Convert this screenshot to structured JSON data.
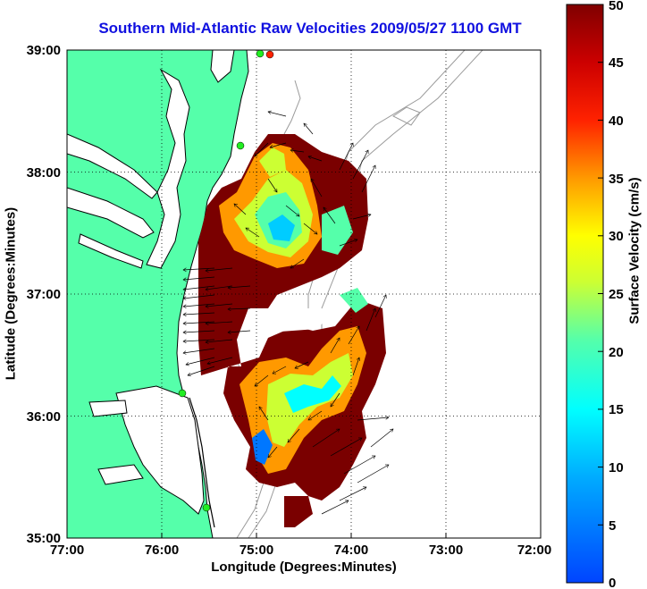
{
  "title": "Southern Mid-Atlantic Raw Velocities 2009/05/27 1100 GMT",
  "x_axis": {
    "label": "Longitude (Degrees:Minutes)",
    "ticks": [
      "77:00",
      "76:00",
      "75:00",
      "74:00",
      "73:00",
      "72:00"
    ]
  },
  "y_axis": {
    "label": "Latitude (Degrees:Minutes)",
    "ticks": [
      "39:00",
      "38:00",
      "37:00",
      "36:00",
      "35:00"
    ]
  },
  "colorbar": {
    "label": "Surface Velocity (cm/s)",
    "ticks": [
      "50",
      "45",
      "40",
      "35",
      "30",
      "25",
      "20",
      "15",
      "10",
      "5",
      "0"
    ],
    "range": [
      0,
      50
    ]
  },
  "chart_data": {
    "type": "heatmap",
    "extent": {
      "lon": [
        -77,
        -72
      ],
      "lat": [
        35,
        39
      ]
    },
    "value_range": [
      0,
      50
    ],
    "units": "cm/s"
  },
  "colors": {
    "land": "#55ffaa",
    "coast": "#000000",
    "bathymetry": "#9a9a9a",
    "site_marker": "#22ee22",
    "site_marker_red": "#ff2200"
  }
}
